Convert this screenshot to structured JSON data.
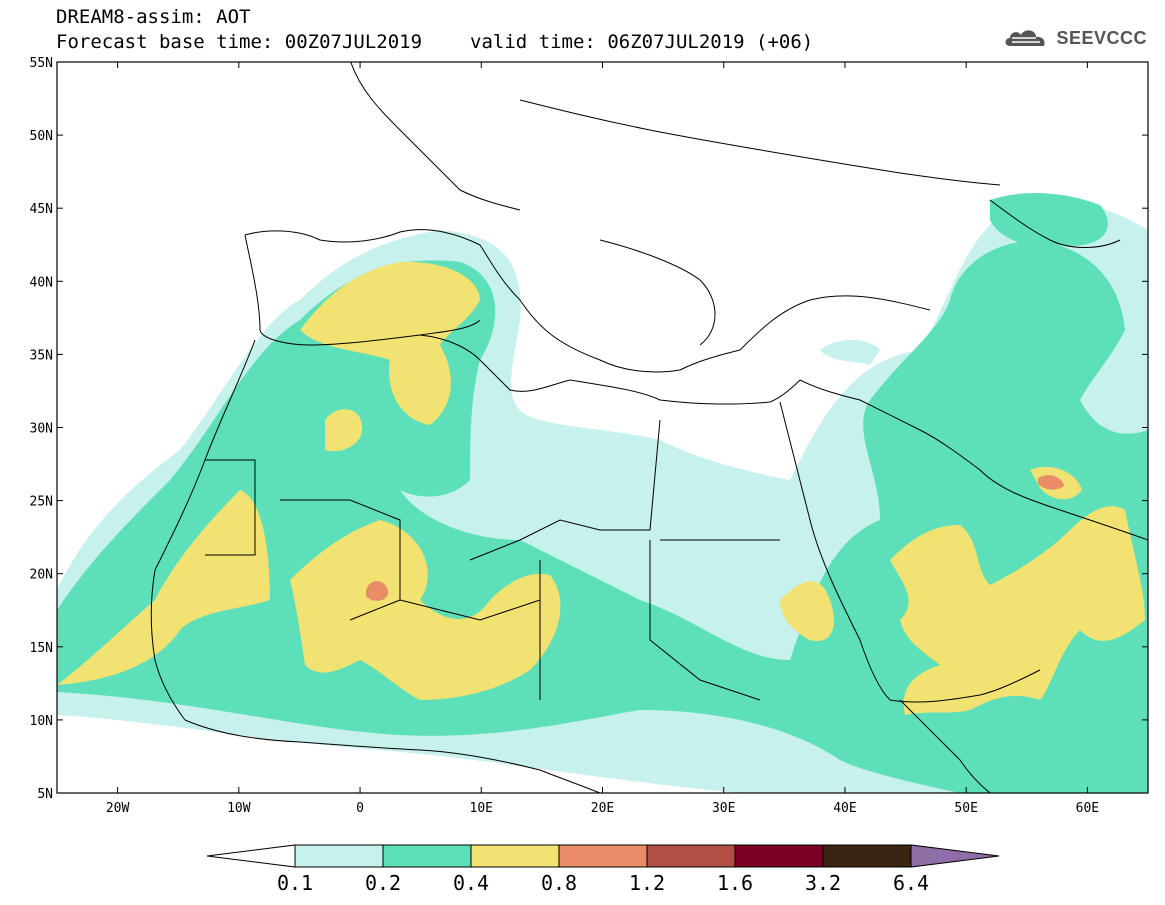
{
  "header": {
    "title": "DREAM8-assim: AOT",
    "base_time": "Forecast base time: 00Z07JUL2019",
    "valid_time": "valid time: 06Z07JUL2019 (+06)",
    "logo_text": "SEEVCCC"
  },
  "map": {
    "lat_labels": [
      "55N",
      "50N",
      "45N",
      "40N",
      "35N",
      "30N",
      "25N",
      "20N",
      "15N",
      "10N",
      "5N"
    ],
    "lon_labels": [
      "20W",
      "10W",
      "0",
      "10E",
      "20E",
      "30E",
      "40E",
      "50E",
      "60E"
    ]
  },
  "legend": {
    "thresholds": [
      "0.1",
      "0.2",
      "0.4",
      "0.8",
      "1.2",
      "1.6",
      "3.2",
      "6.4"
    ],
    "colors": [
      "#c6f1ec",
      "#5ddfb9",
      "#f1e271",
      "#e88d68",
      "#b04f44",
      "#7a0026",
      "#3a2511",
      "#8f6ea7"
    ],
    "below_color": "#ffffff"
  }
}
